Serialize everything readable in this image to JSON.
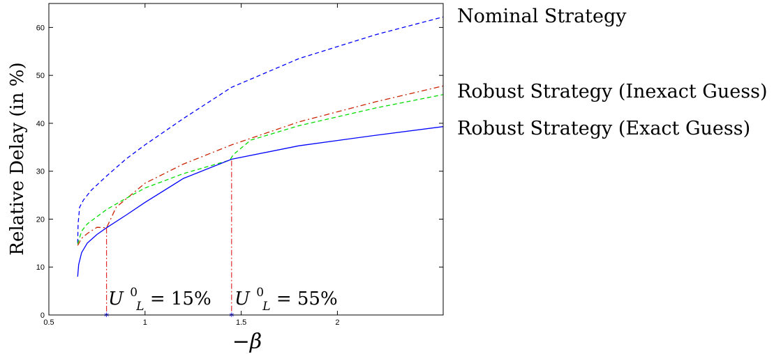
{
  "chart_data": {
    "type": "line",
    "xlabel": "−β",
    "ylabel": "Relative Delay (in %)",
    "xlim": [
      0.5,
      2.55
    ],
    "ylim": [
      0,
      65
    ],
    "x_ticks": [
      "0.5",
      "1",
      "1.5",
      "2"
    ],
    "x_tick_values": [
      0.5,
      1,
      1.5,
      2
    ],
    "y_ticks": [
      "0",
      "10",
      "20",
      "30",
      "40",
      "50",
      "60"
    ],
    "y_tick_values": [
      0,
      10,
      20,
      30,
      40,
      50,
      60
    ],
    "grid": false,
    "series": [
      {
        "name": "Nominal Strategy",
        "color": "#0000ff",
        "dash": "dashed",
        "x": [
          0.65,
          0.652,
          0.66,
          0.68,
          0.72,
          0.8,
          0.9,
          1.0,
          1.2,
          1.45,
          1.8,
          2.2,
          2.55
        ],
        "y": [
          15,
          19,
          22.5,
          24,
          26,
          29,
          32.5,
          35.5,
          41,
          47.5,
          53.5,
          58.5,
          62.2
        ]
      },
      {
        "name": "Robust Strategy (Inexact Guess)",
        "color": "#cc2200",
        "dash": "dashdot",
        "x": [
          0.65,
          0.67,
          0.7,
          0.75,
          0.8,
          0.85,
          1.0,
          1.2,
          1.45,
          1.8,
          2.2,
          2.55
        ],
        "y": [
          14.5,
          16,
          17,
          18.3,
          18.2,
          22.5,
          27.5,
          31.5,
          35.5,
          40.3,
          44.5,
          47.8
        ]
      },
      {
        "name": "",
        "color": "#00dd00",
        "dash": "dashed",
        "x": [
          0.65,
          0.67,
          0.7,
          0.8,
          0.9,
          1.0,
          1.2,
          1.44,
          1.46,
          1.55,
          1.8,
          2.2,
          2.55
        ],
        "y": [
          14.8,
          17.5,
          19,
          22,
          24.3,
          26.5,
          29.5,
          32.3,
          33.5,
          36.5,
          39.5,
          43.2,
          46
        ]
      },
      {
        "name": "Robust Strategy (Exact Guess)",
        "color": "#0000ff",
        "dash": "solid",
        "x": [
          0.65,
          0.655,
          0.67,
          0.7,
          0.75,
          0.8,
          0.9,
          1.0,
          1.2,
          1.45,
          1.8,
          2.2,
          2.55
        ],
        "y": [
          8,
          10.5,
          13,
          15,
          16.8,
          18.2,
          20.8,
          23.5,
          28.5,
          32.5,
          35.3,
          37.5,
          39.3
        ]
      }
    ],
    "markers": [
      {
        "x": 0.8,
        "y": 18.2,
        "label": "U_L^0 = 15%"
      },
      {
        "x": 1.45,
        "y": 32.2,
        "label": "U_L^0 = 55%"
      }
    ],
    "legend_labels": [
      "Nominal Strategy",
      "Robust Strategy (Inexact Guess)",
      "Robust Strategy (Exact Guess)"
    ],
    "annotations": [
      {
        "base": "U",
        "sub": "L",
        "sup": "0",
        "rest": " = 15%"
      },
      {
        "base": "U",
        "sub": "L",
        "sup": "0",
        "rest": " = 55%"
      }
    ]
  }
}
